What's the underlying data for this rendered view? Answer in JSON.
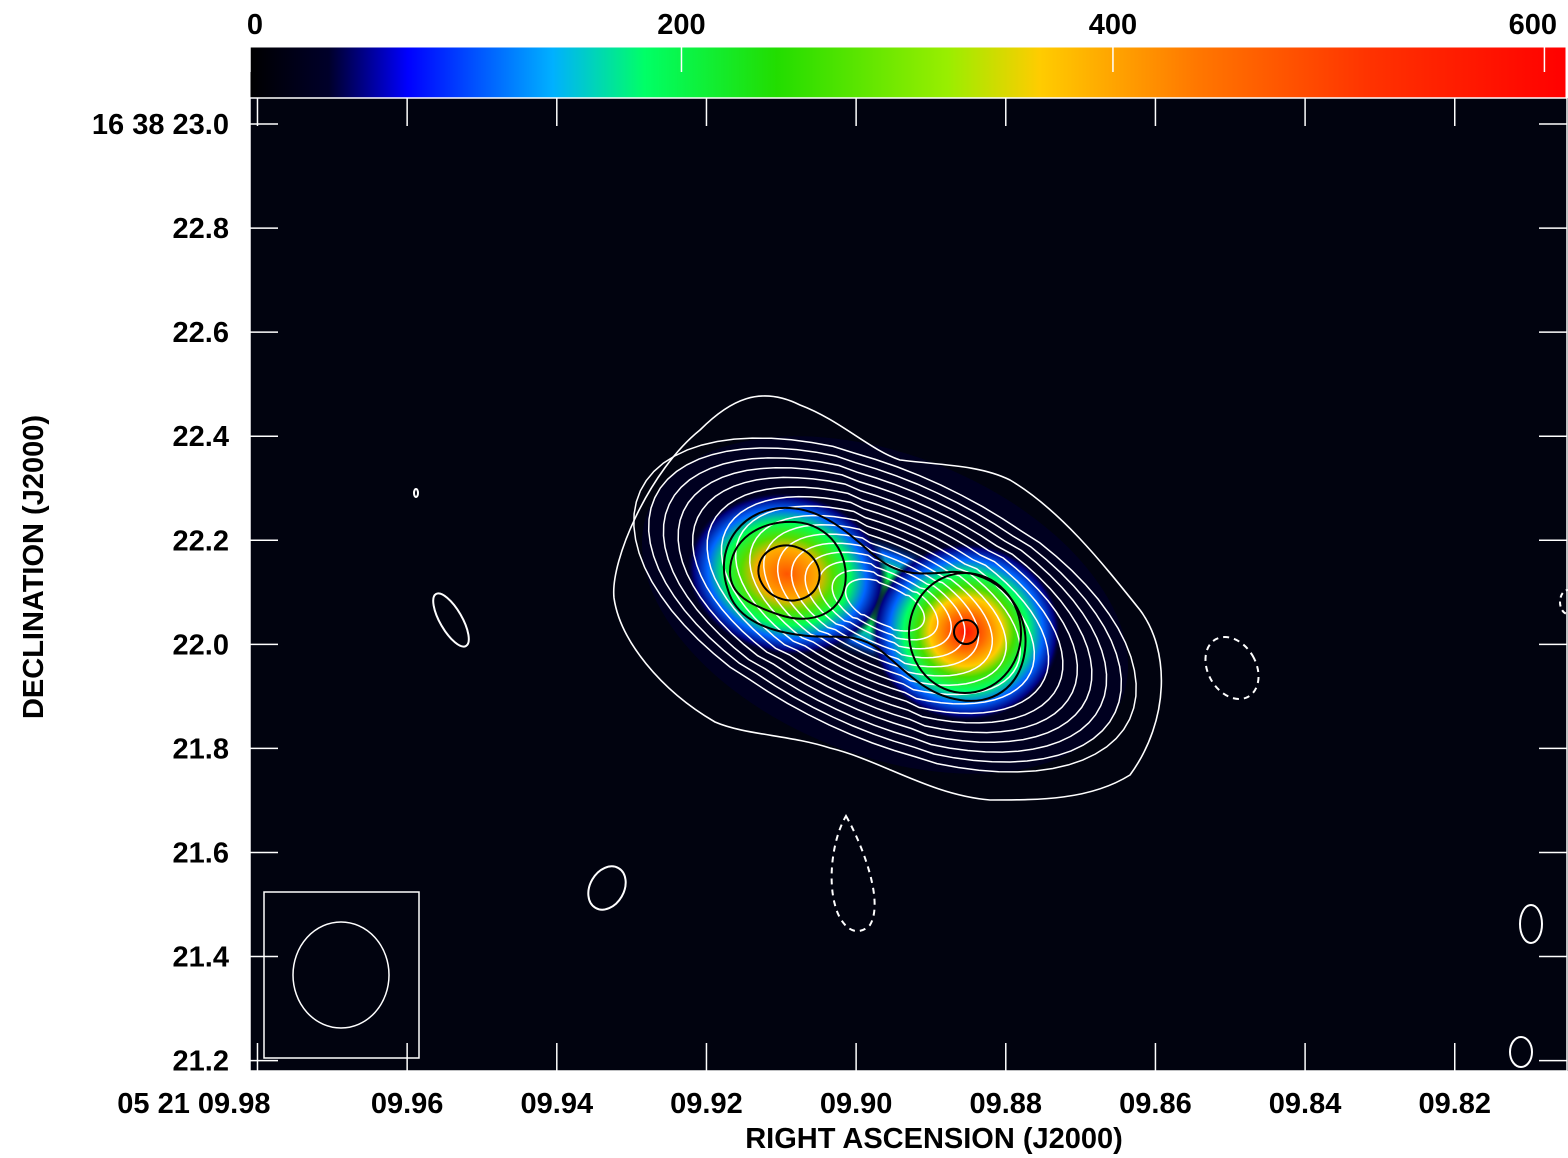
{
  "chart_data": {
    "type": "heatmap",
    "xlabel": "RIGHT ASCENSION (J2000)",
    "ylabel": "DECLINATION (J2000)",
    "x_ticks": [
      {
        "value": 9.98,
        "label": "05 21 09.98"
      },
      {
        "value": 9.96,
        "label": "09.96"
      },
      {
        "value": 9.94,
        "label": "09.94"
      },
      {
        "value": 9.92,
        "label": "09.92"
      },
      {
        "value": 9.9,
        "label": "09.90"
      },
      {
        "value": 9.88,
        "label": "09.88"
      },
      {
        "value": 9.86,
        "label": "09.86"
      },
      {
        "value": 9.84,
        "label": "09.84"
      },
      {
        "value": 9.82,
        "label": "09.82"
      }
    ],
    "y_ticks": [
      {
        "value": 23.0,
        "label": "16 38 23.0"
      },
      {
        "value": 22.8,
        "label": "22.8"
      },
      {
        "value": 22.6,
        "label": "22.6"
      },
      {
        "value": 22.4,
        "label": "22.4"
      },
      {
        "value": 22.2,
        "label": "22.2"
      },
      {
        "value": 22.0,
        "label": "22.0"
      },
      {
        "value": 21.8,
        "label": "21.8"
      },
      {
        "value": 21.6,
        "label": "21.6"
      },
      {
        "value": 21.4,
        "label": "21.4"
      },
      {
        "value": 21.2,
        "label": "21.2"
      }
    ],
    "xlim": [
      9.981,
      9.805
    ],
    "ylim": [
      21.18,
      23.05
    ],
    "colorbar": {
      "ticks": [
        {
          "value": 0,
          "label": "0"
        },
        {
          "value": 200,
          "label": "200"
        },
        {
          "value": 400,
          "label": "400"
        },
        {
          "value": 600,
          "label": "600"
        }
      ],
      "range": [
        0,
        610
      ],
      "colormap": [
        "#000000",
        "#0000ff",
        "#00ff66",
        "#22dd00",
        "#ffcc00",
        "#ff6600",
        "#ff0000"
      ]
    },
    "components": [
      {
        "ra": 9.909,
        "dec": 22.15,
        "peak": 480
      },
      {
        "ra": 9.885,
        "dec": 22.03,
        "peak": 580
      }
    ],
    "beam": {
      "ra": 9.968,
      "dec": 21.39
    }
  }
}
